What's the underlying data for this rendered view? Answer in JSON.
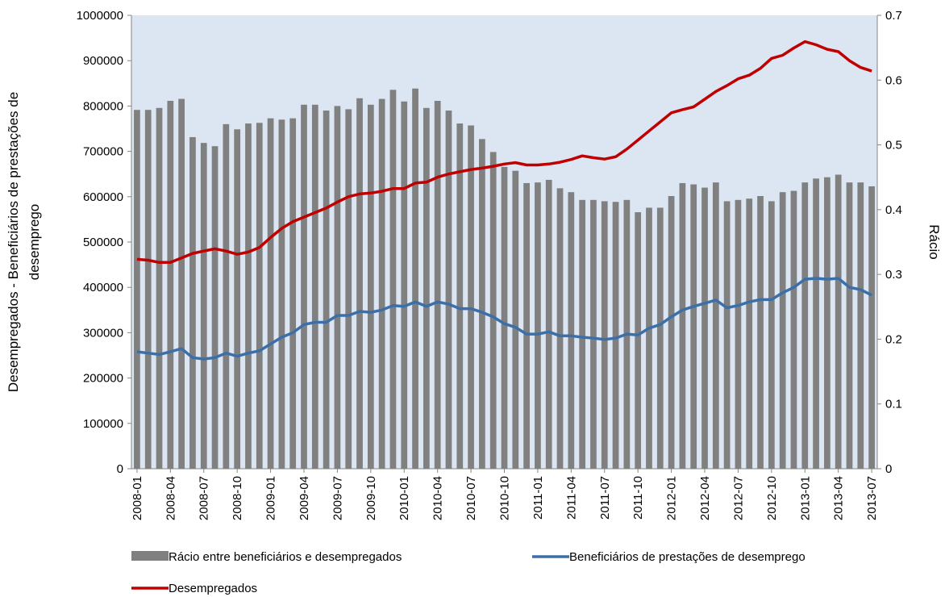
{
  "chart_data": {
    "type": "bar",
    "y_label": [
      "Desempregados - Beneficiários de prestações de",
      "desemprego"
    ],
    "y2_label": "Rácio",
    "categories": [
      "2008-01",
      null,
      null,
      "2008-04",
      null,
      null,
      "2008-07",
      null,
      null,
      "2008-10",
      null,
      null,
      "2009-01",
      null,
      null,
      "2009-04",
      null,
      null,
      "2009-07",
      null,
      null,
      "2009-10",
      null,
      null,
      "2010-01",
      null,
      null,
      "2010-04",
      null,
      null,
      "2010-07",
      null,
      null,
      "2010-10",
      null,
      null,
      "2011-01",
      null,
      null,
      "2011-04",
      null,
      null,
      "2011-07",
      null,
      null,
      "2011-10",
      null,
      null,
      "2012-01",
      null,
      null,
      "2012-04",
      null,
      null,
      "2012-07",
      null,
      null,
      "2012-10",
      null,
      null,
      "2013-01",
      null,
      null,
      "2013-04",
      null,
      null,
      "2013-07"
    ],
    "ylim": [
      0,
      1000000
    ],
    "yticks": [
      0,
      100000,
      200000,
      300000,
      400000,
      500000,
      600000,
      700000,
      800000,
      900000,
      1000000
    ],
    "y2lim": [
      0,
      0.7
    ],
    "y2ticks": [
      0,
      0.1,
      0.2,
      0.3,
      0.4,
      0.5,
      0.6,
      0.7
    ],
    "plot_background": "#dce6f2",
    "series": [
      {
        "name": "Rácio entre beneficiários e desempregados",
        "type": "bar",
        "axis": "y2",
        "color": "#808080",
        "values": [
          0.554,
          0.554,
          0.557,
          0.568,
          0.571,
          0.512,
          0.503,
          0.498,
          0.532,
          0.524,
          0.533,
          0.534,
          0.541,
          0.539,
          0.541,
          0.562,
          0.562,
          0.553,
          0.56,
          0.555,
          0.572,
          0.562,
          0.571,
          0.585,
          0.567,
          0.587,
          0.557,
          0.568,
          0.553,
          0.533,
          0.53,
          0.509,
          0.489,
          0.466,
          0.46,
          0.441,
          0.442,
          0.446,
          0.433,
          0.427,
          0.415,
          0.415,
          0.413,
          0.412,
          0.415,
          0.396,
          0.403,
          0.403,
          0.421,
          0.441,
          0.439,
          0.434,
          0.442,
          0.413,
          0.415,
          0.417,
          0.421,
          0.413,
          0.427,
          0.429,
          0.442,
          0.448,
          0.45,
          0.454,
          0.442,
          0.442,
          0.436
        ]
      },
      {
        "name": "Beneficiários de prestações de desemprego",
        "type": "line",
        "color": "#3c6fa8",
        "values": [
          258000,
          255000,
          252000,
          258000,
          265000,
          245000,
          242000,
          245000,
          255000,
          248000,
          255000,
          260000,
          275000,
          290000,
          300000,
          318000,
          323000,
          323000,
          338000,
          338000,
          347000,
          345000,
          350000,
          360000,
          358000,
          368000,
          358000,
          368000,
          363000,
          353000,
          353000,
          345000,
          335000,
          320000,
          312000,
          297000,
          297000,
          302000,
          293000,
          293000,
          290000,
          288000,
          285000,
          288000,
          297000,
          295000,
          310000,
          318000,
          335000,
          350000,
          358000,
          365000,
          372000,
          355000,
          360000,
          368000,
          373000,
          373000,
          388000,
          400000,
          418000,
          420000,
          418000,
          420000,
          400000,
          395000,
          383000
        ]
      },
      {
        "name": "Desempregados",
        "type": "line",
        "color": "#c00000",
        "values": [
          462000,
          460000,
          455000,
          455000,
          465000,
          475000,
          480000,
          485000,
          480000,
          473000,
          478000,
          488000,
          510000,
          530000,
          545000,
          555000,
          565000,
          575000,
          588000,
          600000,
          606000,
          608000,
          612000,
          618000,
          618000,
          630000,
          632000,
          643000,
          650000,
          655000,
          660000,
          663000,
          667000,
          672000,
          675000,
          670000,
          670000,
          672000,
          676000,
          682000,
          690000,
          686000,
          683000,
          688000,
          705000,
          725000,
          745000,
          765000,
          785000,
          792000,
          798000,
          815000,
          832000,
          845000,
          860000,
          868000,
          883000,
          905000,
          912000,
          928000,
          942000,
          935000,
          925000,
          920000,
          900000,
          885000,
          877000
        ]
      }
    ]
  }
}
